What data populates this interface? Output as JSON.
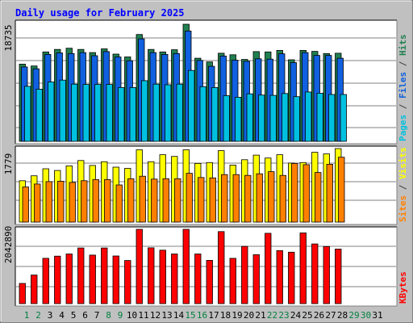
{
  "chart_data": [
    {
      "type": "bar",
      "title": "Daily usage for February 2025",
      "panel": "hits-files-pages",
      "ymax_label": "18735",
      "right_labels": [
        {
          "text": "Pages",
          "color": "#00c0e0"
        },
        {
          "text": " / ",
          "color": "#404040"
        },
        {
          "text": "Files",
          "color": "#1060e0"
        },
        {
          "text": " / ",
          "color": "#404040"
        },
        {
          "text": "Hits",
          "color": "#208050"
        }
      ],
      "categories": [
        "1",
        "2",
        "3",
        "4",
        "5",
        "6",
        "7",
        "8",
        "9",
        "10",
        "11",
        "12",
        "13",
        "14",
        "15",
        "16",
        "17",
        "18",
        "19",
        "20",
        "21",
        "22",
        "23",
        "24",
        "25",
        "26",
        "27",
        "28",
        "29",
        "30",
        "31"
      ],
      "ylim": [
        0,
        18735
      ],
      "series": [
        {
          "name": "Hits",
          "color": "#208050",
          "values": [
            12350,
            12050,
            14300,
            14700,
            14900,
            14700,
            14200,
            14800,
            13950,
            13500,
            17100,
            14700,
            14300,
            14650,
            18735,
            13300,
            12700,
            14100,
            13850,
            13100,
            14350,
            14300,
            14550,
            13050,
            14550,
            14400,
            14050,
            14100,
            null,
            null,
            null
          ]
        },
        {
          "name": "Files",
          "color": "#1060e0",
          "values": [
            11900,
            11600,
            13900,
            14150,
            14050,
            14200,
            13700,
            14350,
            13500,
            12900,
            16400,
            14200,
            13900,
            14050,
            17650,
            12950,
            12000,
            13650,
            13000,
            12800,
            13200,
            13150,
            14000,
            12600,
            14200,
            13750,
            13750,
            13300,
            null,
            null,
            null
          ]
        },
        {
          "name": "Pages",
          "color": "#00c0e0",
          "values": [
            8800,
            8350,
            9500,
            9800,
            9150,
            9100,
            9100,
            9100,
            8600,
            8600,
            9700,
            9150,
            9050,
            9150,
            11350,
            8750,
            8600,
            7300,
            7050,
            7600,
            7400,
            7350,
            7650,
            7150,
            7900,
            7700,
            7500,
            7500,
            null,
            null,
            null
          ]
        }
      ]
    },
    {
      "type": "bar",
      "panel": "visits-sites",
      "ymax_label": "1779",
      "right_labels": [
        {
          "text": "Sites",
          "color": "#ff8000"
        },
        {
          "text": " / ",
          "color": "#404040"
        },
        {
          "text": "Visits",
          "color": "#ffff00"
        }
      ],
      "categories": [
        "1",
        "2",
        "3",
        "4",
        "5",
        "6",
        "7",
        "8",
        "9",
        "10",
        "11",
        "12",
        "13",
        "14",
        "15",
        "16",
        "17",
        "18",
        "19",
        "20",
        "21",
        "22",
        "23",
        "24",
        "25",
        "26",
        "27",
        "28",
        "29",
        "30",
        "31"
      ],
      "ylim": [
        0,
        1779
      ],
      "series": [
        {
          "name": "Visits",
          "color": "#ffff00",
          "values": [
            1000,
            1120,
            1290,
            1250,
            1360,
            1490,
            1370,
            1460,
            1330,
            1300,
            1750,
            1460,
            1630,
            1590,
            1750,
            1420,
            1440,
            1730,
            1380,
            1510,
            1620,
            1550,
            1630,
            1430,
            1440,
            1690,
            1650,
            1779,
            null,
            null,
            null
          ]
        },
        {
          "name": "Sites",
          "color": "#ff8000",
          "values": [
            850,
            920,
            980,
            990,
            960,
            1000,
            1030,
            1030,
            900,
            1050,
            1110,
            1040,
            1050,
            1050,
            1180,
            1080,
            1070,
            1150,
            1150,
            1130,
            1170,
            1220,
            1130,
            1420,
            1390,
            1200,
            1400,
            1570,
            null,
            null,
            null
          ]
        }
      ]
    },
    {
      "type": "bar",
      "panel": "kbytes",
      "ymax_label": "2042890",
      "right_labels": [
        {
          "text": "KBytes",
          "color": "#ff0000"
        }
      ],
      "categories": [
        "1",
        "2",
        "3",
        "4",
        "5",
        "6",
        "7",
        "8",
        "9",
        "10",
        "11",
        "12",
        "13",
        "14",
        "15",
        "16",
        "17",
        "18",
        "19",
        "20",
        "21",
        "22",
        "23",
        "24",
        "25",
        "26",
        "27",
        "28",
        "29",
        "30",
        "31"
      ],
      "ylim": [
        0,
        2042890
      ],
      "series": [
        {
          "name": "KBytes",
          "color": "#ff0000",
          "values": [
            555000,
            787000,
            1245000,
            1305000,
            1365000,
            1530000,
            1335000,
            1530000,
            1310000,
            1185000,
            2042890,
            1535000,
            1470000,
            1365000,
            2042890,
            1365000,
            1190000,
            1980000,
            1245000,
            1575000,
            1345000,
            1935000,
            1460000,
            1415000,
            1945000,
            1640000,
            1570000,
            1500000,
            null,
            null,
            null
          ]
        }
      ]
    }
  ],
  "weekend_days": [
    "1",
    "2",
    "8",
    "9",
    "15",
    "16",
    "22",
    "23",
    "29",
    "30"
  ],
  "day_label_colors": {
    "weekday": "#000000",
    "weekend": "#008040"
  },
  "colors": {
    "background": "#c0c0c0",
    "title": "#0000ff",
    "panel_bg": "#ffffff",
    "grid": "#808080"
  }
}
